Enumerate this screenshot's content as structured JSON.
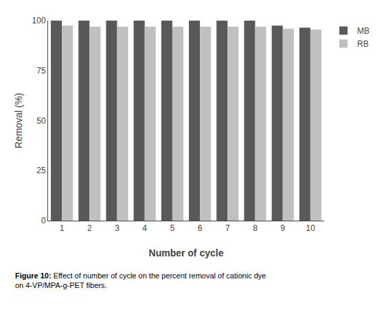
{
  "chart_data": {
    "type": "bar",
    "categories": [
      1,
      2,
      3,
      4,
      5,
      6,
      7,
      8,
      9,
      10
    ],
    "series": [
      {
        "name": "MB",
        "color": "#595959",
        "values": [
          100,
          100,
          100,
          100,
          100,
          100,
          100,
          100,
          97.5,
          96.5
        ]
      },
      {
        "name": "RB",
        "color": "#c0c0c0",
        "values": [
          97.5,
          97.0,
          97.0,
          97.0,
          97.0,
          97.0,
          97.0,
          97.0,
          96.0,
          95.5
        ]
      }
    ],
    "xlabel": "Number of cycle",
    "ylabel": "Removal (%)",
    "ylim": [
      0,
      100
    ],
    "yticks": [
      0,
      25,
      50,
      75,
      100
    ],
    "grid": false,
    "legend": "right",
    "annotations": [
      "Figure 10:",
      "Effect of number of cycle on the percent removal of cationic dye",
      "on 4-VP/MPA-g-PET fibers."
    ]
  }
}
